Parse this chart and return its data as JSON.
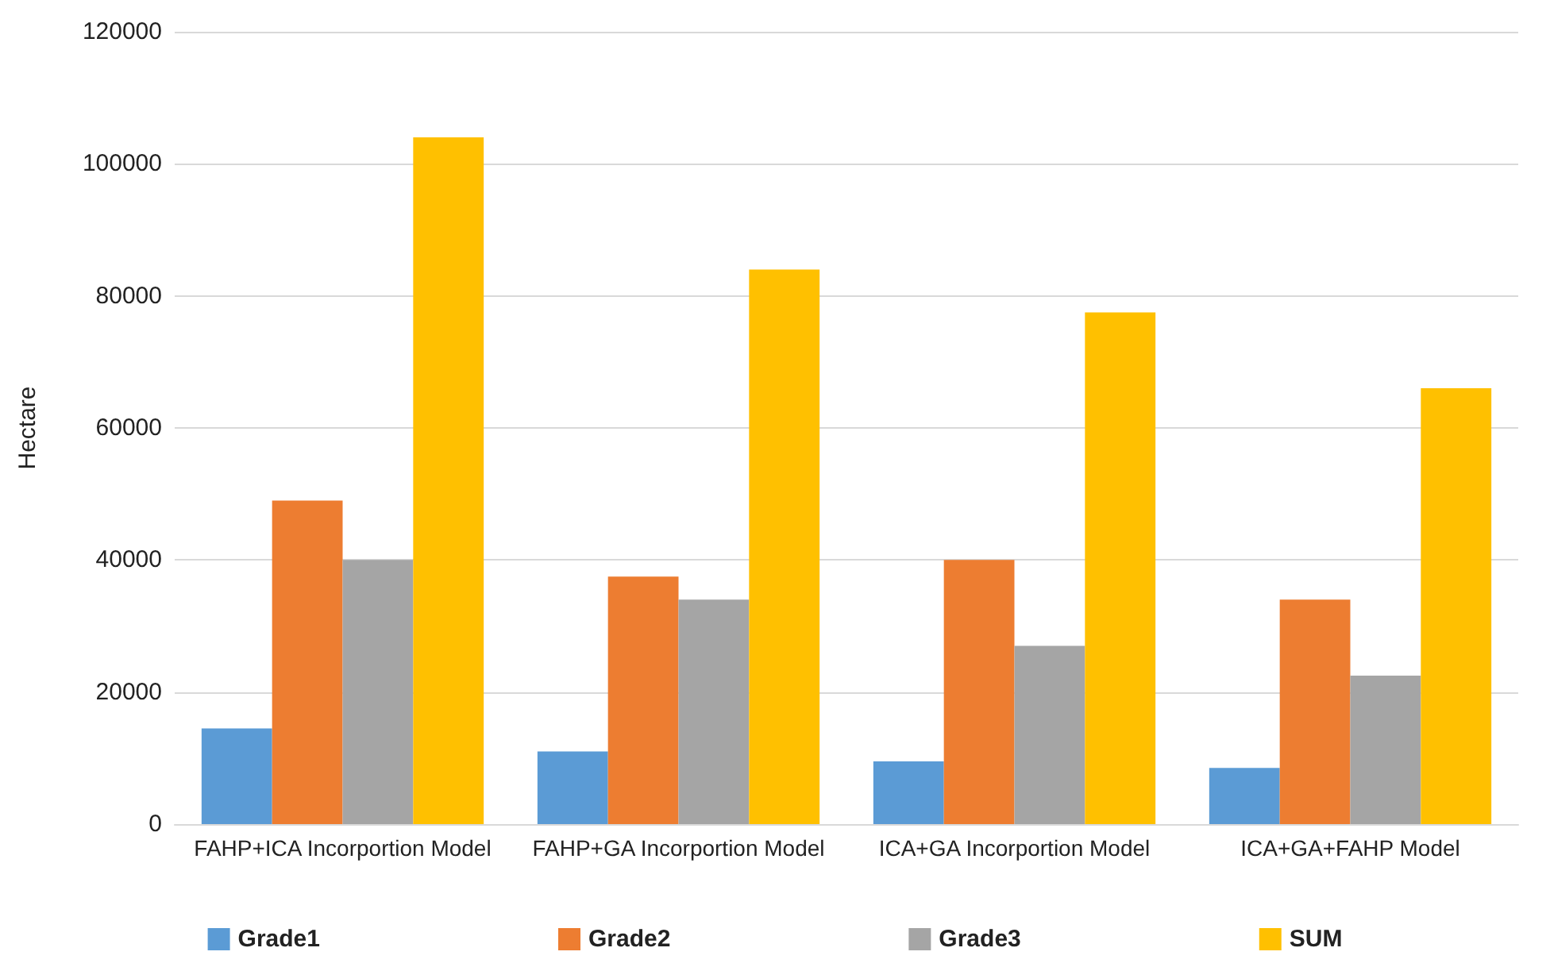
{
  "chart_data": {
    "type": "bar",
    "ylabel": "Hectare",
    "categories": [
      "FAHP+ICA Incorportion Model",
      "FAHP+GA Incorportion Model",
      "ICA+GA Incorportion Model",
      "ICA+GA+FAHP Model"
    ],
    "series": [
      {
        "name": "Grade1",
        "color": "#5b9bd5",
        "values": [
          14500,
          11000,
          9500,
          8500
        ]
      },
      {
        "name": "Grade2",
        "color": "#ed7d31",
        "values": [
          49000,
          37500,
          40000,
          34000
        ]
      },
      {
        "name": "Grade3",
        "color": "#a5a5a5",
        "values": [
          40000,
          34000,
          27000,
          22500
        ]
      },
      {
        "name": "SUM",
        "color": "#ffc000",
        "values": [
          104000,
          84000,
          77500,
          66000
        ]
      }
    ],
    "ylim": [
      0,
      120000
    ],
    "yticks": [
      0,
      20000,
      40000,
      60000,
      80000,
      100000,
      120000
    ],
    "grid": "y",
    "legend": "bottom"
  }
}
